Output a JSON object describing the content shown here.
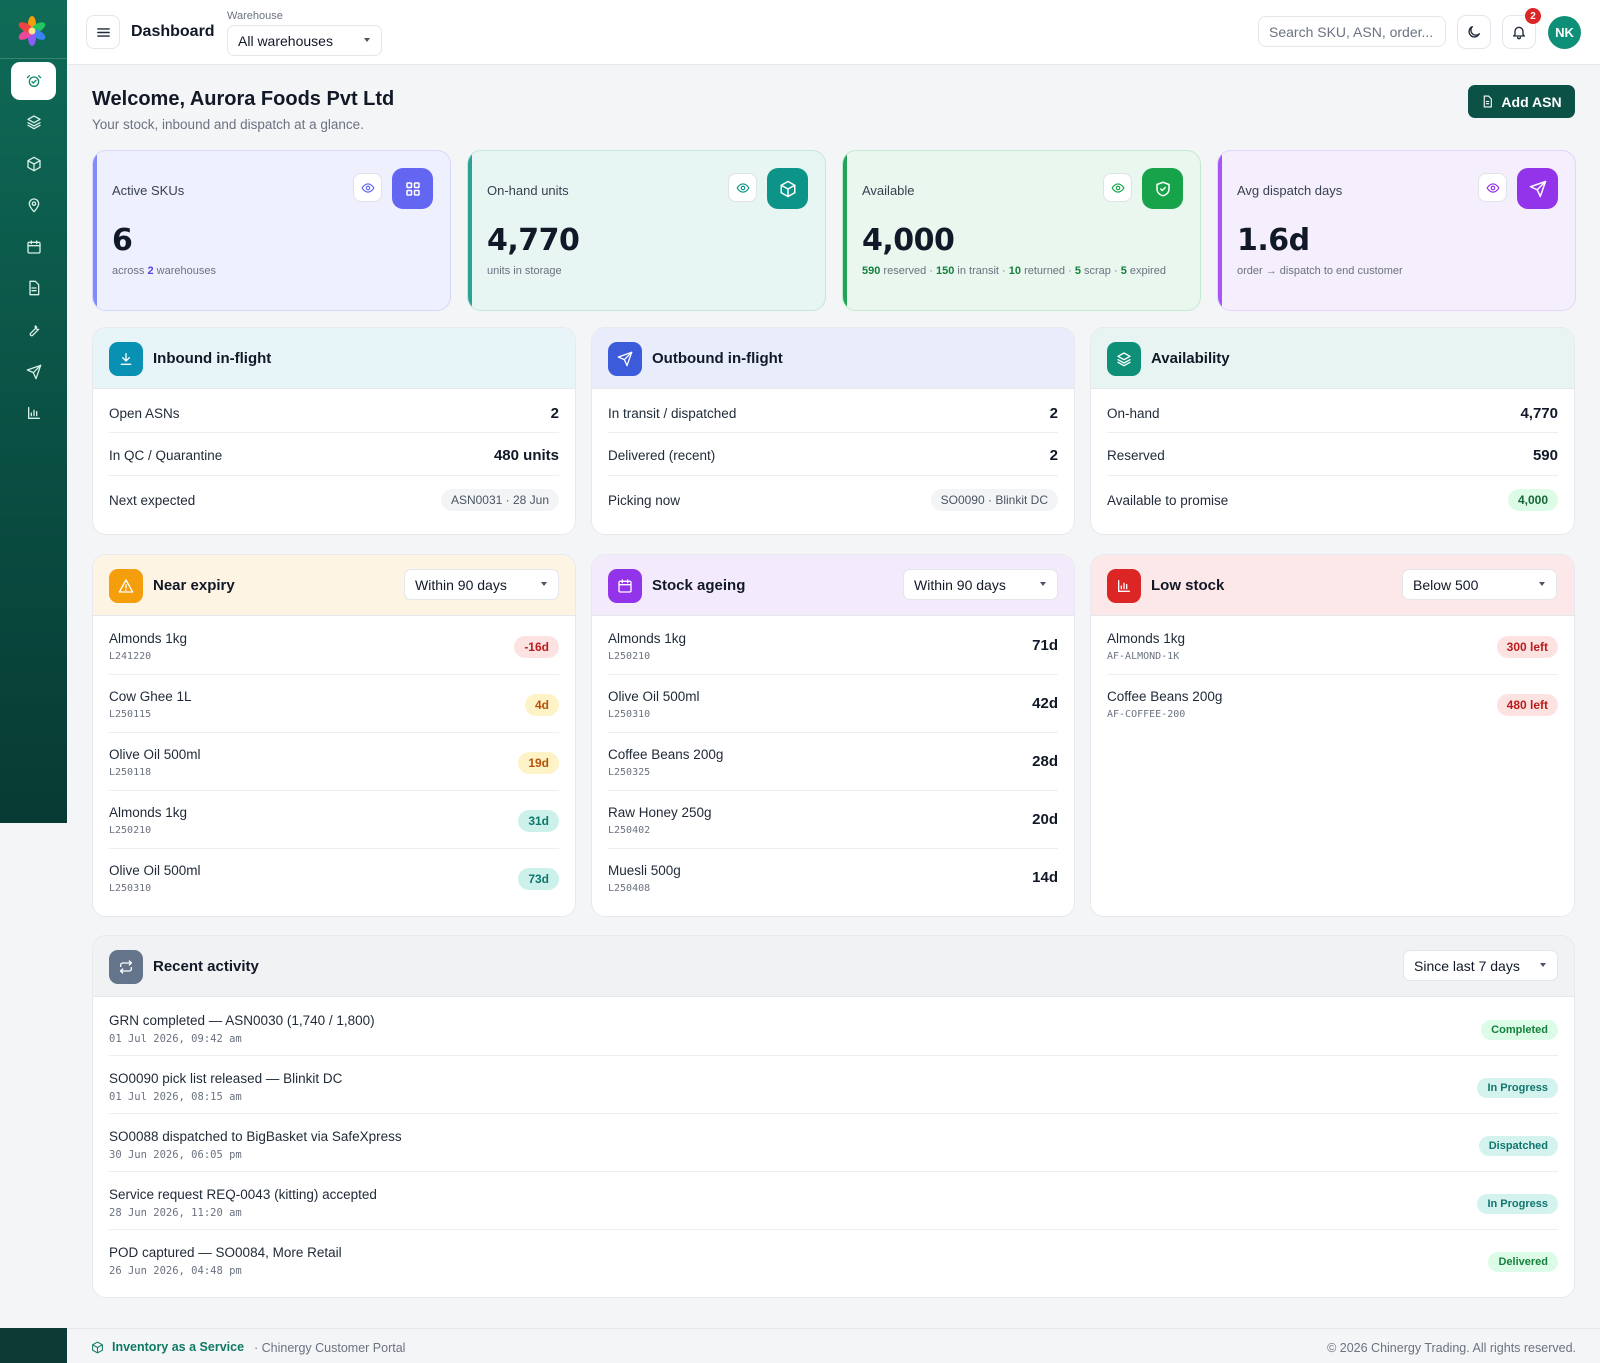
{
  "header": {
    "title": "Dashboard",
    "warehouse_label": "Warehouse",
    "warehouse_value": "All warehouses",
    "search_placeholder": "Search SKU, ASN, order...",
    "notifications": "2",
    "avatar": "NK"
  },
  "sidebar": [
    "clock-check",
    "layers",
    "box",
    "map-pin",
    "calendar",
    "file",
    "wrench",
    "send",
    "bar-chart"
  ],
  "page": {
    "welcome": "Welcome, Aurora Foods Pvt Ltd",
    "subtitle": "Your stock, inbound and dispatch at a glance.",
    "add_button": "Add ASN"
  },
  "kpis": {
    "skus": {
      "label": "Active SKUs",
      "value": "6",
      "note_pre": "across ",
      "note_num": "2",
      "note_post": " warehouses"
    },
    "onhand": {
      "label": "On-hand units",
      "value": "4,770",
      "note": "units in storage"
    },
    "available": {
      "label": "Available",
      "value": "4,000",
      "n1": "590",
      "t1": " reserved · ",
      "n2": "150",
      "t2": " in transit · ",
      "n3": "10",
      "t3": " returned · ",
      "n4": "5",
      "t4": " scrap · ",
      "n5": "5",
      "t5": " expired"
    },
    "dispatch": {
      "label": "Avg dispatch days",
      "value": "1.6d",
      "note": "order → dispatch to end customer"
    }
  },
  "colors": {
    "accent": "#0b5146",
    "skus": "#6366f1",
    "onhand": "#0d9488",
    "available": "#16a34a",
    "dispatch": "#9333ea"
  },
  "inbound": {
    "title": "Inbound in-flight",
    "rows": [
      {
        "k": "Open ASNs",
        "v": "2"
      },
      {
        "k": "In QC / Quarantine",
        "v": "480 units"
      },
      {
        "k": "Next expected",
        "v": "ASN0031 · 28 Jun"
      }
    ]
  },
  "outbound": {
    "title": "Outbound in-flight",
    "rows": [
      {
        "k": "In transit / dispatched",
        "v": "2"
      },
      {
        "k": "Delivered (recent)",
        "v": "2"
      },
      {
        "k": "Picking now",
        "v": "SO0090 · Blinkit DC"
      }
    ]
  },
  "availability": {
    "title": "Availability",
    "rows": [
      {
        "k": "On-hand",
        "v": "4,770"
      },
      {
        "k": "Reserved",
        "v": "590"
      },
      {
        "k": "Available to promise",
        "v": "4,000"
      }
    ]
  },
  "near_expiry": {
    "title": "Near expiry",
    "filter": "Within 90 days",
    "items": [
      {
        "name": "Almonds 1kg",
        "lot": "L241220",
        "days": "-16d"
      },
      {
        "name": "Cow Ghee 1L",
        "lot": "L250115",
        "days": "4d"
      },
      {
        "name": "Olive Oil 500ml",
        "lot": "L250118",
        "days": "19d"
      },
      {
        "name": "Almonds 1kg",
        "lot": "L250210",
        "days": "31d"
      },
      {
        "name": "Olive Oil 500ml",
        "lot": "L250310",
        "days": "73d"
      }
    ]
  },
  "stock_ageing": {
    "title": "Stock ageing",
    "filter": "Within 90 days",
    "items": [
      {
        "name": "Almonds 1kg",
        "lot": "L250210",
        "days": "71d"
      },
      {
        "name": "Olive Oil 500ml",
        "lot": "L250310",
        "days": "42d"
      },
      {
        "name": "Coffee Beans 200g",
        "lot": "L250325",
        "days": "28d"
      },
      {
        "name": "Raw Honey 250g",
        "lot": "L250402",
        "days": "20d"
      },
      {
        "name": "Muesli 500g",
        "lot": "L250408",
        "days": "14d"
      }
    ]
  },
  "low_stock": {
    "title": "Low stock",
    "filter": "Below 500",
    "items": [
      {
        "name": "Almonds 1kg",
        "sku": "AF-ALMOND-1K",
        "left": "300 left"
      },
      {
        "name": "Coffee Beans 200g",
        "sku": "AF-COFFEE-200",
        "left": "480 left"
      }
    ]
  },
  "activity": {
    "title": "Recent activity",
    "filter": "Since last 7 days",
    "items": [
      {
        "text": "GRN completed — ASN0030 (1,740 / 1,800)",
        "time": "01 Jul 2026, 09:42 am",
        "status": "Completed"
      },
      {
        "text": "SO0090 pick list released — Blinkit DC",
        "time": "01 Jul 2026, 08:15 am",
        "status": "In Progress"
      },
      {
        "text": "SO0088 dispatched to BigBasket via SafeXpress",
        "time": "30 Jun 2026, 06:05 pm",
        "status": "Dispatched"
      },
      {
        "text": "Service request REQ-0043 (kitting) accepted",
        "time": "28 Jun 2026, 11:20 am",
        "status": "In Progress"
      },
      {
        "text": "POD captured — SO0084, More Retail",
        "time": "26 Jun 2026, 04:48 pm",
        "status": "Delivered"
      }
    ]
  },
  "footer": {
    "brand": "Inventory as a Service",
    "portal": "· Chinergy Customer Portal",
    "copyright": "© 2026 Chinergy Trading. All rights reserved."
  }
}
